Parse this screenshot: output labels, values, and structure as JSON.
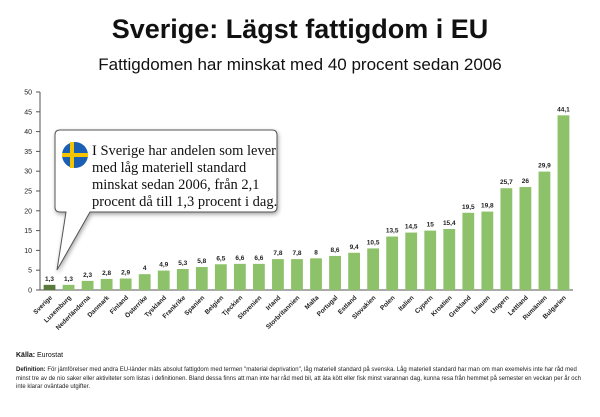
{
  "header": {
    "title": "Sverige: Lägst fattigdom i EU",
    "subtitle": "Fattigdomen har minskat med 40 procent sedan 2006"
  },
  "callout": {
    "text": "I Sverige har andelen som lever med låg materiell standard minskat sedan 2006, från 2,1 procent då till 1,3 procent i dag.",
    "flag_icon": "sweden-flag-icon",
    "colors": {
      "flag_blue": "#1a5fb4",
      "flag_yellow": "#f5c400"
    }
  },
  "footer": {
    "source_label": "Källa:",
    "source_value": "Eurostat",
    "definition_label": "Definition:",
    "definition_text": "För jämförelser med andra EU-länder mäts absolut fattigdom med termen \"material deprivation\", låg materiell standard på svenska. Låg materiell standard har man om man exemelvis inte har råd med minst tre av de nio saker eller aktiviteter som listas i definitionen. Bland dessa finns att man inte har råd med bil, att äta kött eller fisk minst varannan dag, kunna resa från hemmet på semester en veckan per år och inte klarar oväntade utgifter."
  },
  "colors": {
    "bar_light": "#8dc26a",
    "bar_highlight": "#5a7a3c",
    "axis": "#555555"
  },
  "chart_data": {
    "type": "bar",
    "title": "Sverige: Lägst fattigdom i EU",
    "subtitle": "Fattigdomen har minskat med 40 procent sedan 2006",
    "xlabel": "",
    "ylabel": "",
    "ylim": [
      0,
      50
    ],
    "yticks": [
      "0",
      "5",
      "10",
      "15",
      "20",
      "25",
      "30",
      "35",
      "40",
      "45",
      "50"
    ],
    "grid": false,
    "highlight_category": "Sverige",
    "categories": [
      "Sverige",
      "Luxemburg",
      "Nederländerna",
      "Danmark",
      "Finland",
      "Österrike",
      "Tyskland",
      "Frankrike",
      "Spanien",
      "Belgien",
      "Tjeckien",
      "Slovenien",
      "Irland",
      "Storbritannien",
      "Malta",
      "Portugal",
      "Estland",
      "Slovakien",
      "Polen",
      "Italien",
      "Cypern",
      "Kroatien",
      "Grekland",
      "Litauen",
      "Ungern",
      "Lettland",
      "Rumänien",
      "Bulgarien"
    ],
    "values": [
      1.3,
      1.3,
      2.3,
      2.8,
      2.9,
      4,
      4.9,
      5.3,
      5.8,
      6.5,
      6.6,
      6.6,
      7.8,
      7.8,
      8,
      8.6,
      9.4,
      10.5,
      13.5,
      14.5,
      15,
      15.4,
      19.5,
      19.8,
      25.7,
      26,
      29.9,
      44.1
    ],
    "labels": [
      "1,3",
      "1,3",
      "2,3",
      "2,8",
      "2,9",
      "4",
      "4,9",
      "5,3",
      "5,8",
      "6,5",
      "6,6",
      "6,6",
      "7,8",
      "7,8",
      "8",
      "8,6",
      "9,4",
      "10,5",
      "13,5",
      "14,5",
      "15",
      "15,4",
      "19,5",
      "19,8",
      "25,7",
      "26",
      "29,9",
      "44,1"
    ]
  }
}
